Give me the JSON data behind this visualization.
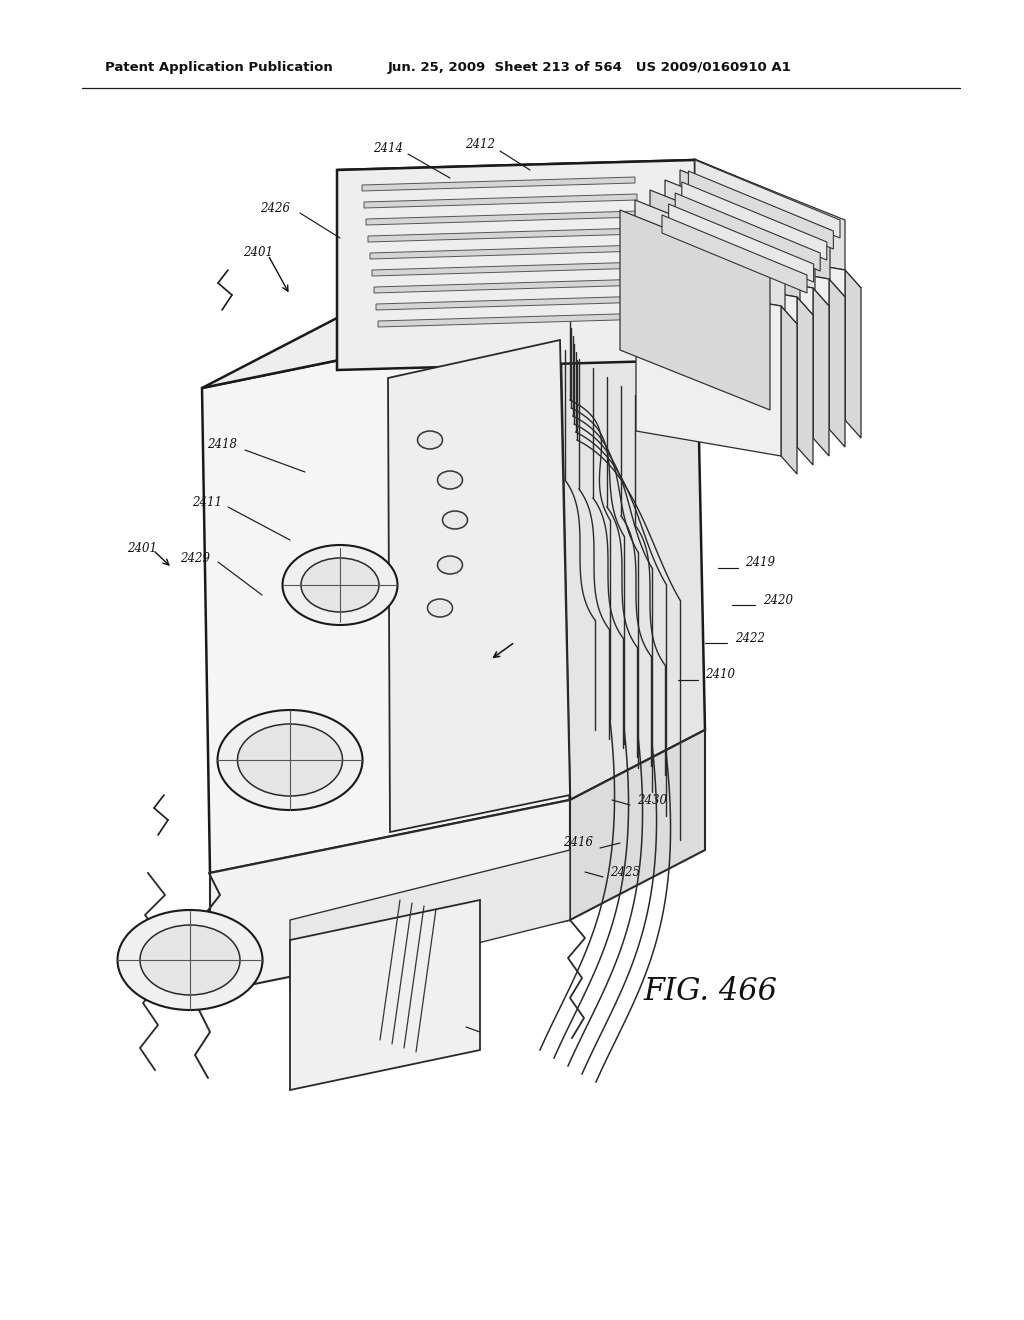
{
  "background_color": "#ffffff",
  "line_color": "#1a1a1a",
  "header_left": "Patent Application Publication",
  "header_middle": "Jun. 25, 2009  Sheet 213 of 564   US 2009/0160910 A1",
  "fig_label": "FIG. 466"
}
